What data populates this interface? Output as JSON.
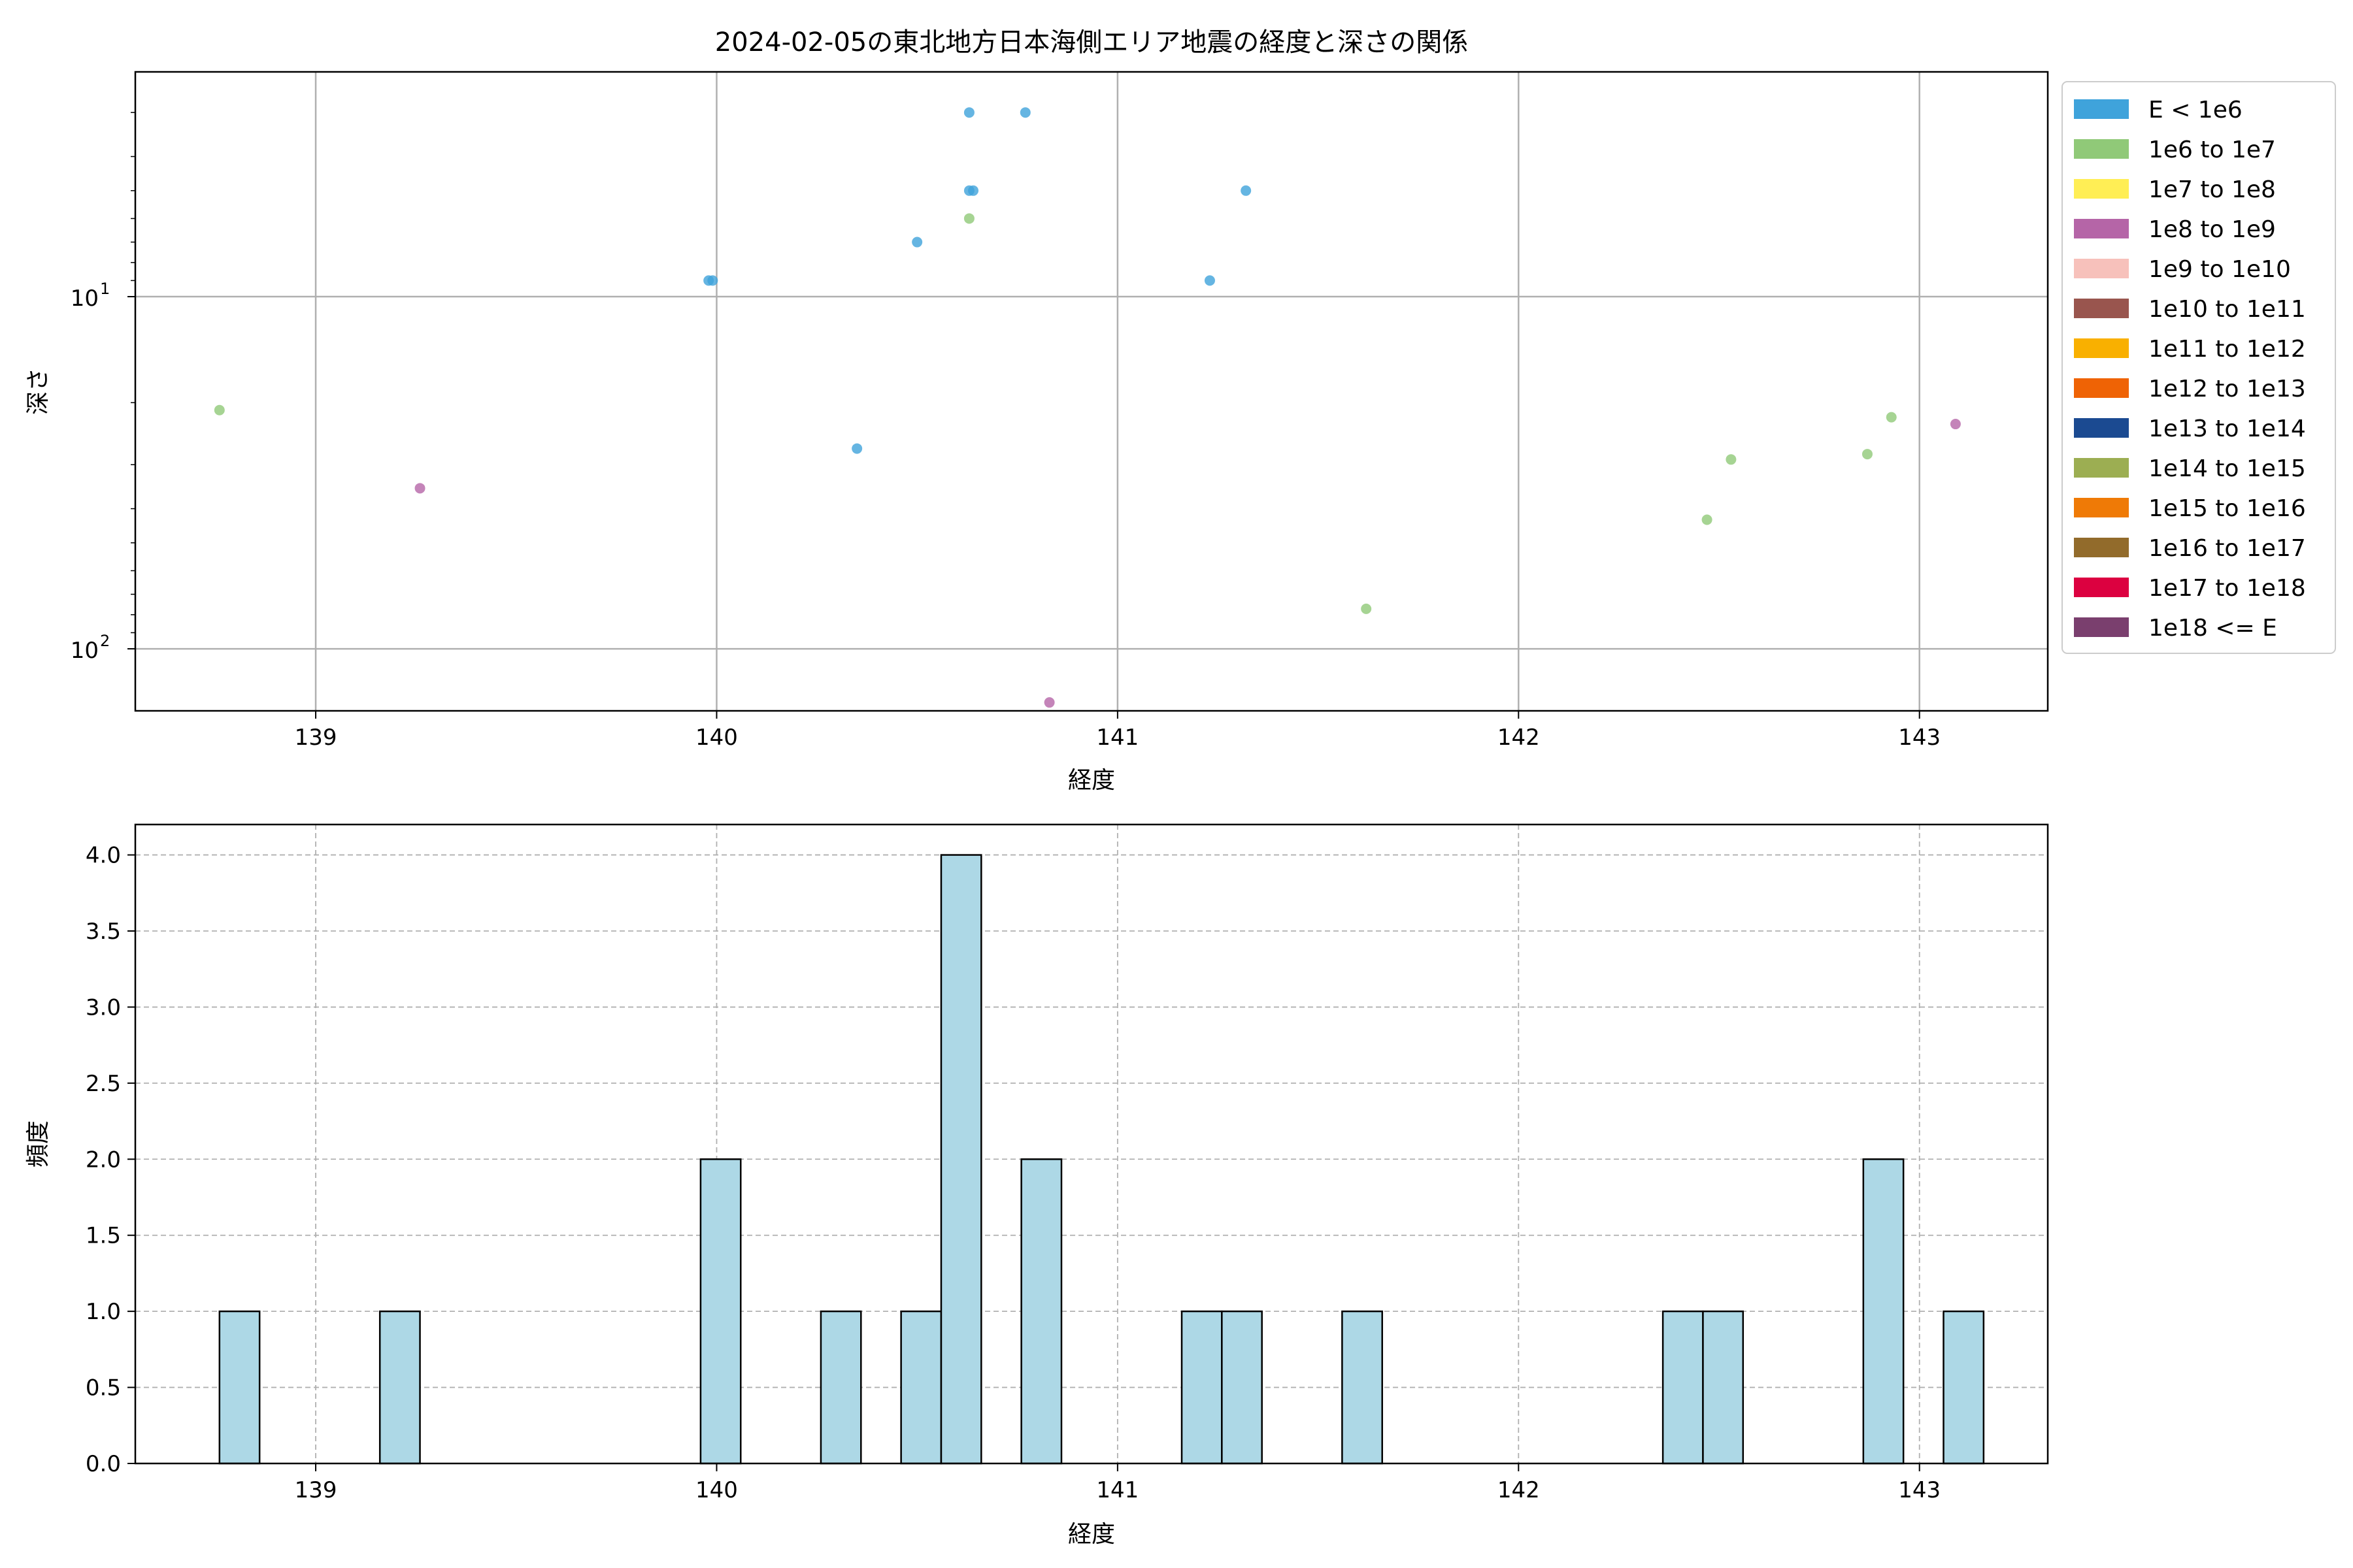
{
  "chart_data": [
    {
      "type": "scatter",
      "title": "2024-02-05の東北地方日本海側エリア地震の経度と深さの関係",
      "xlabel": "経度",
      "ylabel": "深さ",
      "xlim": [
        138.55,
        143.32
      ],
      "ylim": [
        150,
        2.3
      ],
      "y_scale": "log",
      "y_inverted": true,
      "grid": true,
      "x_ticks": [
        "139",
        "140",
        "141",
        "142",
        "143"
      ],
      "y_ticks": [
        {
          "value": 10,
          "base": "10",
          "exp": "1"
        },
        {
          "value": 100,
          "base": "10",
          "exp": "2"
        }
      ],
      "legend_position": "outside-right",
      "legend": [
        {
          "label": "E < 1e6",
          "color": "#3FA3DB"
        },
        {
          "label": "1e6 to 1e7",
          "color": "#90C978"
        },
        {
          "label": "1e7 to 1e8",
          "color": "#FFEE55"
        },
        {
          "label": "1e8 to 1e9",
          "color": "#B565A7"
        },
        {
          "label": "1e9 to 1e10",
          "color": "#F7C1BB"
        },
        {
          "label": "1e10 to 1e11",
          "color": "#99554E"
        },
        {
          "label": "1e11 to 1e12",
          "color": "#F9B000"
        },
        {
          "label": "1e12 to 1e13",
          "color": "#EF6305"
        },
        {
          "label": "1e13 to 1e14",
          "color": "#1B4A91"
        },
        {
          "label": "1e14 to 1e15",
          "color": "#9CAE52"
        },
        {
          "label": "1e15 to 1e16",
          "color": "#EF7A06"
        },
        {
          "label": "1e16 to 1e17",
          "color": "#926B2B"
        },
        {
          "label": "1e17 to 1e18",
          "color": "#DC0140"
        },
        {
          "label": "1e18 <= E",
          "color": "#7A3F6E"
        }
      ],
      "points": [
        {
          "x": 140.63,
          "y": 3.0,
          "class": 0
        },
        {
          "x": 140.77,
          "y": 3.0,
          "class": 0
        },
        {
          "x": 140.63,
          "y": 5.0,
          "class": 0
        },
        {
          "x": 140.64,
          "y": 5.0,
          "class": 0
        },
        {
          "x": 141.32,
          "y": 5.0,
          "class": 0
        },
        {
          "x": 140.63,
          "y": 6.0,
          "class": 1
        },
        {
          "x": 140.5,
          "y": 7.0,
          "class": 0
        },
        {
          "x": 139.98,
          "y": 9.0,
          "class": 0
        },
        {
          "x": 139.99,
          "y": 9.0,
          "class": 0
        },
        {
          "x": 141.23,
          "y": 9.0,
          "class": 0
        },
        {
          "x": 138.76,
          "y": 21.0,
          "class": 1
        },
        {
          "x": 142.93,
          "y": 22.0,
          "class": 1
        },
        {
          "x": 143.09,
          "y": 23.0,
          "class": 3
        },
        {
          "x": 140.35,
          "y": 27.0,
          "class": 0
        },
        {
          "x": 142.87,
          "y": 28.0,
          "class": 1
        },
        {
          "x": 142.53,
          "y": 29.0,
          "class": 1
        },
        {
          "x": 139.26,
          "y": 35.0,
          "class": 3
        },
        {
          "x": 142.47,
          "y": 43.0,
          "class": 1
        },
        {
          "x": 141.62,
          "y": 77.0,
          "class": 1
        },
        {
          "x": 140.83,
          "y": 142.0,
          "class": 3
        }
      ]
    },
    {
      "type": "bar",
      "subtype": "histogram",
      "xlabel": "経度",
      "ylabel": "頻度",
      "xlim": [
        138.55,
        143.32
      ],
      "ylim": [
        0,
        4.2
      ],
      "grid": true,
      "bar_color": "#ADD8E6",
      "edge_color": "#000000",
      "x_ticks": [
        "139",
        "140",
        "141",
        "142",
        "143"
      ],
      "y_ticks": [
        "0.0",
        "0.5",
        "1.0",
        "1.5",
        "2.0",
        "2.5",
        "3.0",
        "3.5",
        "4.0"
      ],
      "bins": [
        {
          "x0": 138.76,
          "x1": 138.86,
          "count": 1
        },
        {
          "x0": 139.16,
          "x1": 139.26,
          "count": 1
        },
        {
          "x0": 139.96,
          "x1": 140.06,
          "count": 2
        },
        {
          "x0": 140.26,
          "x1": 140.36,
          "count": 1
        },
        {
          "x0": 140.46,
          "x1": 140.56,
          "count": 1
        },
        {
          "x0": 140.56,
          "x1": 140.66,
          "count": 4
        },
        {
          "x0": 140.76,
          "x1": 140.86,
          "count": 2
        },
        {
          "x0": 141.16,
          "x1": 141.26,
          "count": 1
        },
        {
          "x0": 141.26,
          "x1": 141.36,
          "count": 1
        },
        {
          "x0": 141.56,
          "x1": 141.66,
          "count": 1
        },
        {
          "x0": 142.36,
          "x1": 142.46,
          "count": 1
        },
        {
          "x0": 142.46,
          "x1": 142.56,
          "count": 1
        },
        {
          "x0": 142.86,
          "x1": 142.96,
          "count": 2
        },
        {
          "x0": 143.06,
          "x1": 143.16,
          "count": 1
        }
      ]
    }
  ]
}
